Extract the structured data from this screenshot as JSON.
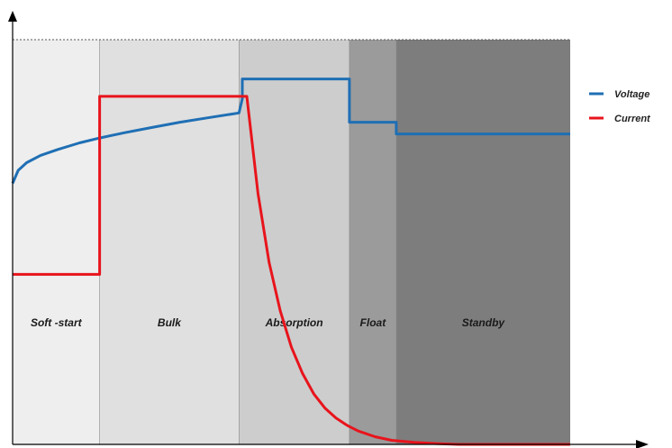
{
  "chart_data": {
    "type": "line",
    "title": "",
    "xlabel": "",
    "ylabel": "",
    "grid": false,
    "legend_placement": "right",
    "x_range": [
      0,
      100
    ],
    "y_range": [
      0,
      100
    ],
    "phases": [
      {
        "label": "Soft -start",
        "start": 0,
        "end": 15.6,
        "color": "#eeeeee"
      },
      {
        "label": "Bulk",
        "start": 15.6,
        "end": 40.6,
        "color": "#e0e0e0"
      },
      {
        "label": "Absorption",
        "start": 40.6,
        "end": 60.4,
        "color": "#cdcdcd"
      },
      {
        "label": "Float",
        "start": 60.4,
        "end": 68.8,
        "color": "#9b9b9b"
      },
      {
        "label": "Standby",
        "start": 68.8,
        "end": 100,
        "color": "#7d7d7d"
      }
    ],
    "series": [
      {
        "name": "Voltage",
        "color": "#1f6fb4",
        "points": [
          [
            0,
            64.5
          ],
          [
            1,
            67.7
          ],
          [
            2.5,
            69.6
          ],
          [
            5,
            71.4
          ],
          [
            8,
            72.8
          ],
          [
            12,
            74.5
          ],
          [
            15.6,
            75.7
          ],
          [
            20,
            77.0
          ],
          [
            25,
            78.3
          ],
          [
            30,
            79.6
          ],
          [
            35,
            80.7
          ],
          [
            40.6,
            81.9
          ],
          [
            41.2,
            85.4
          ],
          [
            41.2,
            90.3
          ],
          [
            60.4,
            90.3
          ],
          [
            60.4,
            79.6
          ],
          [
            68.8,
            79.6
          ],
          [
            68.8,
            76.7
          ],
          [
            100,
            76.7
          ]
        ]
      },
      {
        "name": "Current",
        "color": "#e8141c",
        "points": [
          [
            0,
            42.0
          ],
          [
            15.6,
            42.0
          ],
          [
            15.6,
            86.0
          ],
          [
            42.0,
            86.0
          ],
          [
            44,
            62.0
          ],
          [
            46,
            45.0
          ],
          [
            48,
            33.0
          ],
          [
            50,
            24.0
          ],
          [
            52,
            17.5
          ],
          [
            54,
            12.5
          ],
          [
            56,
            9.0
          ],
          [
            58,
            6.5
          ],
          [
            60,
            4.7
          ],
          [
            62,
            3.3
          ],
          [
            65,
            1.9
          ],
          [
            68,
            1.0
          ],
          [
            72,
            0.5
          ],
          [
            76,
            0.2
          ],
          [
            80,
            0.0
          ],
          [
            100,
            0.0
          ]
        ]
      }
    ]
  }
}
